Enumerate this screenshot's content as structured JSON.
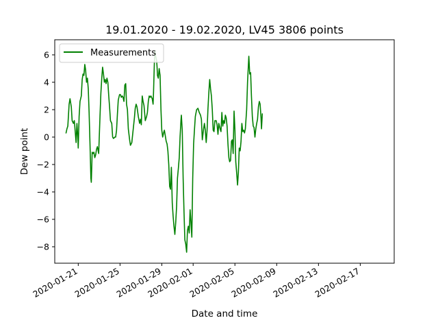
{
  "chart_data": {
    "type": "line",
    "title": "19.01.2020 - 19.02.2020, LV45 3806 points",
    "xlabel": "Date and time",
    "ylabel": "Dew point",
    "xlim": [
      "2020-01-18T18:00",
      "2020-02-20T06:00"
    ],
    "ylim": [
      -9.2,
      7.1
    ],
    "x_ticks": [
      "2020-01-21",
      "2020-01-25",
      "2020-01-29",
      "2020-02-01",
      "2020-02-05",
      "2020-02-09",
      "2020-02-13",
      "2020-02-17"
    ],
    "y_ticks": [
      -8,
      -6,
      -4,
      -2,
      0,
      2,
      4,
      6
    ],
    "grid": false,
    "legend": {
      "placement": "top-left",
      "entries": [
        "Measurements"
      ]
    },
    "series": [
      {
        "name": "Measurements",
        "color": "#008000",
        "points": [
          [
            "2020-01-19T20:00",
            0.3
          ],
          [
            "2020-01-19T22:00",
            0.6
          ],
          [
            "2020-01-20T00:00",
            0.8
          ],
          [
            "2020-01-20T03:00",
            2.4
          ],
          [
            "2020-01-20T05:00",
            2.8
          ],
          [
            "2020-01-20T08:00",
            2.2
          ],
          [
            "2020-01-20T10:00",
            1.2
          ],
          [
            "2020-01-20T13:00",
            1.0
          ],
          [
            "2020-01-20T15:00",
            1.2
          ],
          [
            "2020-01-20T17:00",
            0.4
          ],
          [
            "2020-01-20T19:00",
            -0.4
          ],
          [
            "2020-01-20T21:00",
            1.0
          ],
          [
            "2020-01-20T23:00",
            0.0
          ],
          [
            "2020-01-21T00:00",
            -0.8
          ],
          [
            "2020-01-21T02:00",
            1.5
          ],
          [
            "2020-01-21T04:00",
            2.6
          ],
          [
            "2020-01-21T07:00",
            3.0
          ],
          [
            "2020-01-21T09:00",
            4.2
          ],
          [
            "2020-01-21T11:00",
            4.6
          ],
          [
            "2020-01-21T13:00",
            4.5
          ],
          [
            "2020-01-21T15:00",
            5.3
          ],
          [
            "2020-01-21T17:00",
            4.9
          ],
          [
            "2020-01-21T19:00",
            4.0
          ],
          [
            "2020-01-21T21:00",
            4.3
          ],
          [
            "2020-01-21T23:00",
            3.5
          ],
          [
            "2020-01-22T01:00",
            1.8
          ],
          [
            "2020-01-22T03:00",
            -0.5
          ],
          [
            "2020-01-22T05:00",
            -3.0
          ],
          [
            "2020-01-22T06:00",
            -3.3
          ],
          [
            "2020-01-22T08:00",
            -1.1
          ],
          [
            "2020-01-22T10:00",
            -1.2
          ],
          [
            "2020-01-22T12:00",
            -1.1
          ],
          [
            "2020-01-22T14:00",
            -1.5
          ],
          [
            "2020-01-22T16:00",
            -1.3
          ],
          [
            "2020-01-22T18:00",
            -0.9
          ],
          [
            "2020-01-22T20:00",
            -0.7
          ],
          [
            "2020-01-22T23:00",
            -1.2
          ],
          [
            "2020-01-23T02:00",
            1.5
          ],
          [
            "2020-01-23T04:00",
            3.2
          ],
          [
            "2020-01-23T06:00",
            4.3
          ],
          [
            "2020-01-23T08:00",
            5.1
          ],
          [
            "2020-01-23T10:00",
            4.6
          ],
          [
            "2020-01-23T12:00",
            4.0
          ],
          [
            "2020-01-23T14:00",
            4.2
          ],
          [
            "2020-01-23T16:00",
            3.9
          ],
          [
            "2020-01-23T18:00",
            4.3
          ],
          [
            "2020-01-23T20:00",
            4.0
          ],
          [
            "2020-01-23T22:00",
            3.0
          ],
          [
            "2020-01-24T00:00",
            2.2
          ],
          [
            "2020-01-24T02:00",
            1.2
          ],
          [
            "2020-01-24T05:00",
            1.0
          ],
          [
            "2020-01-24T07:00",
            0.0
          ],
          [
            "2020-01-24T09:00",
            -0.1
          ],
          [
            "2020-01-24T12:00",
            0.0
          ],
          [
            "2020-01-24T14:00",
            0.0
          ],
          [
            "2020-01-24T16:00",
            0.5
          ],
          [
            "2020-01-24T18:00",
            1.7
          ],
          [
            "2020-01-24T20:00",
            2.7
          ],
          [
            "2020-01-24T23:00",
            3.1
          ],
          [
            "2020-01-25T01:00",
            3.1
          ],
          [
            "2020-01-25T03:00",
            2.9
          ],
          [
            "2020-01-25T05:00",
            3.0
          ],
          [
            "2020-01-25T07:00",
            2.9
          ],
          [
            "2020-01-25T09:00",
            2.6
          ],
          [
            "2020-01-25T11:00",
            3.8
          ],
          [
            "2020-01-25T13:00",
            3.9
          ],
          [
            "2020-01-25T15:00",
            2.4
          ],
          [
            "2020-01-25T17:00",
            2.0
          ],
          [
            "2020-01-25T19:00",
            0.6
          ],
          [
            "2020-01-25T22:00",
            -0.2
          ],
          [
            "2020-01-26T00:00",
            -0.6
          ],
          [
            "2020-01-26T03:00",
            -0.4
          ],
          [
            "2020-01-26T06:00",
            0.5
          ],
          [
            "2020-01-26T09:00",
            1.4
          ],
          [
            "2020-01-26T11:00",
            2.1
          ],
          [
            "2020-01-26T13:00",
            2.4
          ],
          [
            "2020-01-26T15:00",
            2.2
          ],
          [
            "2020-01-26T18:00",
            1.5
          ],
          [
            "2020-01-26T21:00",
            1.0
          ],
          [
            "2020-01-26T23:00",
            1.3
          ],
          [
            "2020-01-27T01:00",
            0.9
          ],
          [
            "2020-01-27T03:00",
            3.0
          ],
          [
            "2020-01-27T05:00",
            2.6
          ],
          [
            "2020-01-27T07:00",
            2.3
          ],
          [
            "2020-01-27T10:00",
            1.2
          ],
          [
            "2020-01-27T13:00",
            1.5
          ],
          [
            "2020-01-27T15:00",
            1.8
          ],
          [
            "2020-01-27T17:00",
            2.6
          ],
          [
            "2020-01-27T19:00",
            3.0
          ],
          [
            "2020-01-27T21:00",
            2.9
          ],
          [
            "2020-01-27T23:00",
            3.0
          ],
          [
            "2020-01-28T02:00",
            2.8
          ],
          [
            "2020-01-28T04:00",
            2.4
          ],
          [
            "2020-01-28T05:00",
            3.2
          ],
          [
            "2020-01-28T07:00",
            5.5
          ],
          [
            "2020-01-28T08:00",
            6.3
          ],
          [
            "2020-01-28T10:00",
            5.9
          ],
          [
            "2020-01-28T12:00",
            5.6
          ],
          [
            "2020-01-28T13:00",
            5.2
          ],
          [
            "2020-01-28T14:00",
            4.5
          ],
          [
            "2020-01-28T16:00",
            4.3
          ],
          [
            "2020-01-28T18:00",
            5.0
          ],
          [
            "2020-01-28T20:00",
            4.5
          ],
          [
            "2020-01-28T22:00",
            2.0
          ],
          [
            "2020-01-29T00:00",
            0.5
          ],
          [
            "2020-01-29T02:00",
            0.0
          ],
          [
            "2020-01-29T04:00",
            0.3
          ],
          [
            "2020-01-29T06:00",
            0.5
          ],
          [
            "2020-01-29T08:00",
            0.1
          ],
          [
            "2020-01-29T10:00",
            -0.3
          ],
          [
            "2020-01-29T12:00",
            -0.5
          ],
          [
            "2020-01-29T14:00",
            -1.0
          ],
          [
            "2020-01-29T16:00",
            -2.0
          ],
          [
            "2020-01-29T18:00",
            -3.6
          ],
          [
            "2020-01-29T20:00",
            -3.8
          ],
          [
            "2020-01-29T22:00",
            -2.2
          ],
          [
            "2020-01-30T00:00",
            -4.8
          ],
          [
            "2020-01-30T02:00",
            -5.8
          ],
          [
            "2020-01-30T04:00",
            -6.5
          ],
          [
            "2020-01-30T06:00",
            -7.1
          ],
          [
            "2020-01-30T08:00",
            -6.2
          ],
          [
            "2020-01-30T10:00",
            -5.0
          ],
          [
            "2020-01-30T12:00",
            -3.0
          ],
          [
            "2020-01-30T14:00",
            -2.3
          ],
          [
            "2020-01-30T16:00",
            -1.5
          ],
          [
            "2020-01-30T18:00",
            0.0
          ],
          [
            "2020-01-30T20:00",
            1.2
          ],
          [
            "2020-01-30T21:00",
            1.6
          ],
          [
            "2020-01-30T23:00",
            0.5
          ],
          [
            "2020-01-31T01:00",
            -3.0
          ],
          [
            "2020-01-31T03:00",
            -5.5
          ],
          [
            "2020-01-31T05:00",
            -7.5
          ],
          [
            "2020-01-31T07:00",
            -7.8
          ],
          [
            "2020-01-31T09:00",
            -8.4
          ],
          [
            "2020-01-31T11:00",
            -6.8
          ],
          [
            "2020-01-31T13:00",
            -6.5
          ],
          [
            "2020-01-31T15:00",
            -7.0
          ],
          [
            "2020-01-31T17:00",
            -5.3
          ],
          [
            "2020-01-31T19:00",
            -6.2
          ],
          [
            "2020-01-31T21:00",
            -7.3
          ],
          [
            "2020-01-31T23:00",
            -3.0
          ],
          [
            "2020-02-01T01:00",
            -0.5
          ],
          [
            "2020-02-01T03:00",
            0.5
          ],
          [
            "2020-02-01T05:00",
            1.5
          ],
          [
            "2020-02-01T08:00",
            2.0
          ],
          [
            "2020-02-01T11:00",
            2.1
          ],
          [
            "2020-02-01T14:00",
            1.8
          ],
          [
            "2020-02-01T17:00",
            1.6
          ],
          [
            "2020-02-01T19:00",
            1.3
          ],
          [
            "2020-02-01T21:00",
            -0.2
          ],
          [
            "2020-02-02T00:00",
            0.6
          ],
          [
            "2020-02-02T02:00",
            1.0
          ],
          [
            "2020-02-02T04:00",
            0.5
          ],
          [
            "2020-02-02T06:00",
            -0.4
          ],
          [
            "2020-02-02T08:00",
            0.5
          ],
          [
            "2020-02-02T10:00",
            2.0
          ],
          [
            "2020-02-02T12:00",
            3.2
          ],
          [
            "2020-02-02T14:00",
            4.2
          ],
          [
            "2020-02-02T16:00",
            3.5
          ],
          [
            "2020-02-02T18:00",
            3.0
          ],
          [
            "2020-02-02T20:00",
            2.0
          ],
          [
            "2020-02-02T22:00",
            0.5
          ],
          [
            "2020-02-03T00:00",
            0.4
          ],
          [
            "2020-02-03T02:00",
            1.2
          ],
          [
            "2020-02-03T05:00",
            1.2
          ],
          [
            "2020-02-03T07:00",
            0.9
          ],
          [
            "2020-02-03T09:00",
            0.2
          ],
          [
            "2020-02-03T11:00",
            1.0
          ],
          [
            "2020-02-03T14:00",
            0.6
          ],
          [
            "2020-02-03T16:00",
            0.4
          ],
          [
            "2020-02-03T18:00",
            1.8
          ],
          [
            "2020-02-03T20:00",
            0.8
          ],
          [
            "2020-02-03T22:00",
            1.2
          ],
          [
            "2020-02-04T00:00",
            1.0
          ],
          [
            "2020-02-04T02:00",
            1.6
          ],
          [
            "2020-02-04T04:00",
            1.4
          ],
          [
            "2020-02-04T06:00",
            0.8
          ],
          [
            "2020-02-04T08:00",
            -0.5
          ],
          [
            "2020-02-04T10:00",
            -1.5
          ],
          [
            "2020-02-04T12:00",
            -1.8
          ],
          [
            "2020-02-04T14:00",
            -1.7
          ],
          [
            "2020-02-04T16:00",
            -0.3
          ],
          [
            "2020-02-04T18:00",
            -0.2
          ],
          [
            "2020-02-04T20:00",
            -1.2
          ],
          [
            "2020-02-04T22:00",
            1.9
          ],
          [
            "2020-02-05T00:00",
            0.5
          ],
          [
            "2020-02-05T02:00",
            -1.8
          ],
          [
            "2020-02-05T04:00",
            -2.6
          ],
          [
            "2020-02-05T06:00",
            -3.5
          ],
          [
            "2020-02-05T08:00",
            -2.6
          ],
          [
            "2020-02-05T10:00",
            -0.8
          ],
          [
            "2020-02-05T12:00",
            -1.0
          ],
          [
            "2020-02-05T14:00",
            -0.3
          ],
          [
            "2020-02-05T16:00",
            1.0
          ],
          [
            "2020-02-05T18:00",
            0.4
          ],
          [
            "2020-02-05T20:00",
            0.5
          ],
          [
            "2020-02-05T22:00",
            0.3
          ],
          [
            "2020-02-06T00:00",
            0.6
          ],
          [
            "2020-02-06T03:00",
            2.0
          ],
          [
            "2020-02-06T05:00",
            4.0
          ],
          [
            "2020-02-06T07:00",
            5.3
          ],
          [
            "2020-02-06T08:00",
            5.9
          ],
          [
            "2020-02-06T10:00",
            4.6
          ],
          [
            "2020-02-06T12:00",
            4.7
          ],
          [
            "2020-02-06T14:00",
            3.0
          ],
          [
            "2020-02-06T16:00",
            1.5
          ],
          [
            "2020-02-06T18:00",
            0.8
          ],
          [
            "2020-02-06T20:00",
            0.7
          ],
          [
            "2020-02-06T22:00",
            0.0
          ],
          [
            "2020-02-07T00:00",
            0.6
          ],
          [
            "2020-02-07T02:00",
            1.0
          ],
          [
            "2020-02-07T04:00",
            1.3
          ],
          [
            "2020-02-07T06:00",
            2.2
          ],
          [
            "2020-02-07T08:00",
            2.6
          ],
          [
            "2020-02-07T10:00",
            2.4
          ],
          [
            "2020-02-07T12:00",
            1.4
          ],
          [
            "2020-02-07T13:00",
            0.6
          ],
          [
            "2020-02-07T15:00",
            1.7
          ]
        ]
      }
    ]
  }
}
